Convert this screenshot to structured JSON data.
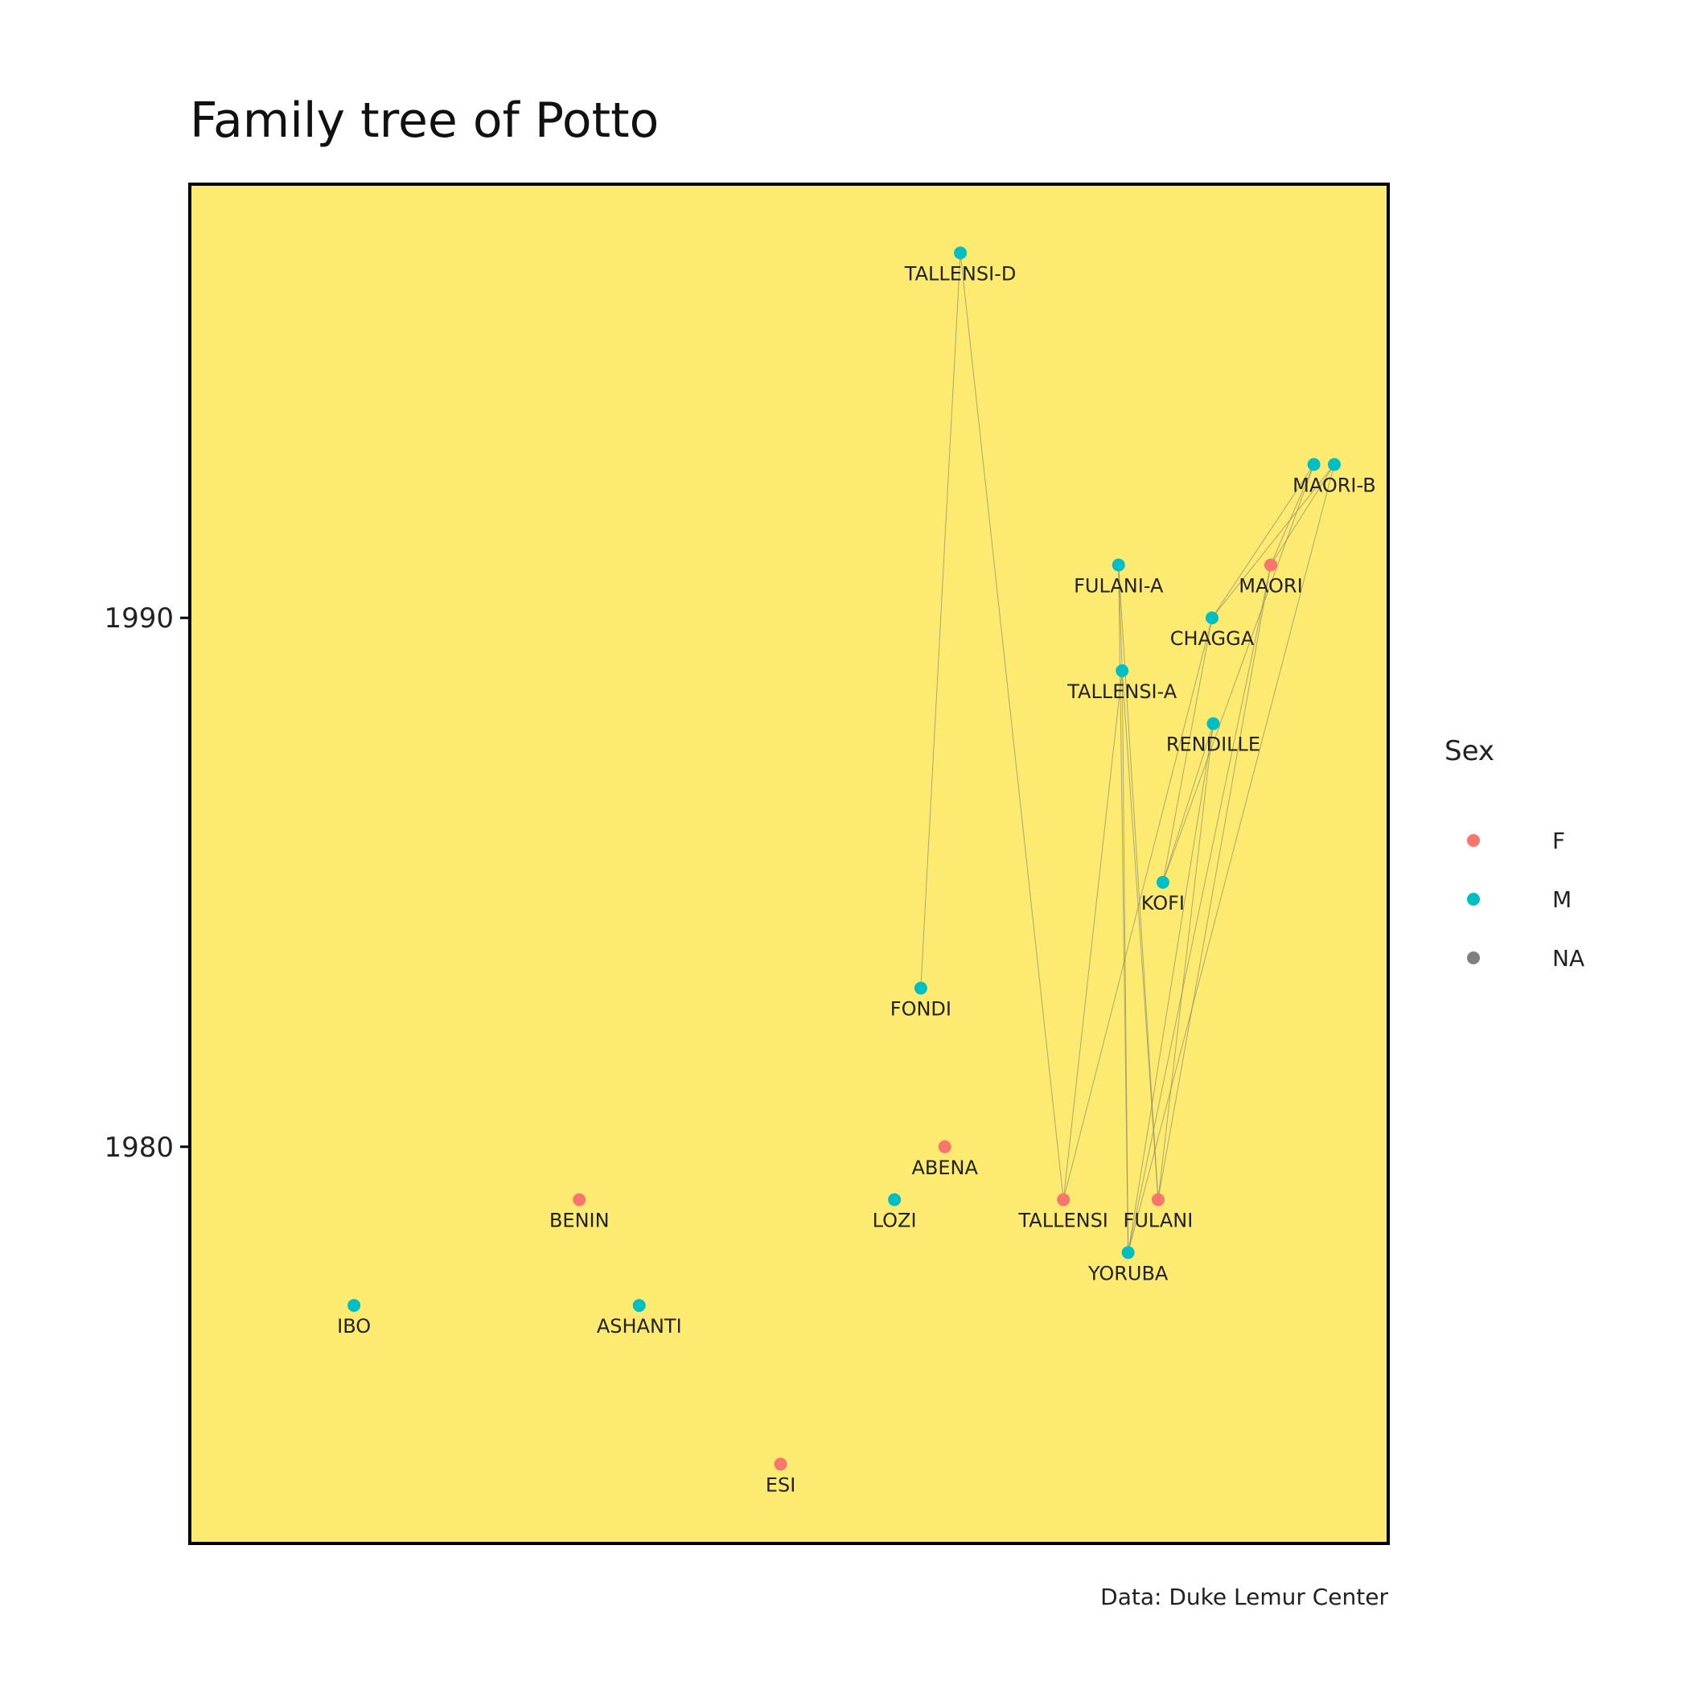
{
  "chart_data": {
    "type": "scatter",
    "title": "Family tree of Potto",
    "caption": "Data: Duke Lemur Center",
    "xlabel": "",
    "ylabel": "",
    "ylim": [
      1972.5,
      1998.2
    ],
    "y_ticks": [
      1980,
      1990
    ],
    "y_tick_labels": [
      "1980",
      "1990"
    ],
    "grid": false,
    "background": "#FDEB71",
    "sex_colors": {
      "F": "#F8766D",
      "M": "#00BFC4",
      "NA": "#7F7F7F"
    },
    "legend": {
      "title": "Sex",
      "position": "right",
      "items": [
        {
          "label": "F",
          "color": "#F8766D"
        },
        {
          "label": "M",
          "color": "#00BFC4"
        },
        {
          "label": "NA",
          "color": "#7F7F7F"
        }
      ]
    },
    "points": [
      {
        "name": "TALLENSI-D",
        "sex": "M",
        "x": 0.643,
        "y": 1996.9,
        "label": "TALLENSI-D"
      },
      {
        "name": "MAORI-B-1",
        "sex": "M",
        "x": 0.938,
        "y": 1992.9,
        "label": ""
      },
      {
        "name": "MAORI-B",
        "sex": "M",
        "x": 0.955,
        "y": 1992.9,
        "label": "MAORI-B"
      },
      {
        "name": "FULANI-A",
        "sex": "M",
        "x": 0.775,
        "y": 1991.0,
        "label": "FULANI-A"
      },
      {
        "name": "MAORI",
        "sex": "F",
        "x": 0.902,
        "y": 1991.0,
        "label": "MAORI"
      },
      {
        "name": "CHAGGA",
        "sex": "M",
        "x": 0.853,
        "y": 1990.0,
        "label": "CHAGGA"
      },
      {
        "name": "TALLENSI-A",
        "sex": "M",
        "x": 0.778,
        "y": 1989.0,
        "label": "TALLENSI-A"
      },
      {
        "name": "RENDILLE",
        "sex": "M",
        "x": 0.854,
        "y": 1988.0,
        "label": "RENDILLE"
      },
      {
        "name": "KOFI",
        "sex": "M",
        "x": 0.812,
        "y": 1985.0,
        "label": "KOFI"
      },
      {
        "name": "FONDI",
        "sex": "M",
        "x": 0.61,
        "y": 1983.0,
        "label": "FONDI"
      },
      {
        "name": "ABENA",
        "sex": "F",
        "x": 0.63,
        "y": 1980.0,
        "label": "ABENA"
      },
      {
        "name": "BENIN",
        "sex": "F",
        "x": 0.325,
        "y": 1979.0,
        "label": "BENIN"
      },
      {
        "name": "LOZI",
        "sex": "M",
        "x": 0.588,
        "y": 1979.0,
        "label": "LOZI"
      },
      {
        "name": "TALLENSI",
        "sex": "F",
        "x": 0.729,
        "y": 1979.0,
        "label": "TALLENSI"
      },
      {
        "name": "FULANI",
        "sex": "F",
        "x": 0.808,
        "y": 1979.0,
        "label": "FULANI"
      },
      {
        "name": "YORUBA",
        "sex": "M",
        "x": 0.783,
        "y": 1978.0,
        "label": "YORUBA"
      },
      {
        "name": "IBO",
        "sex": "M",
        "x": 0.137,
        "y": 1977.0,
        "label": "IBO"
      },
      {
        "name": "ASHANTI",
        "sex": "M",
        "x": 0.375,
        "y": 1977.0,
        "label": "ASHANTI"
      },
      {
        "name": "ESI",
        "sex": "F",
        "x": 0.493,
        "y": 1974.0,
        "label": "ESI"
      }
    ],
    "links": [
      [
        "FONDI",
        "TALLENSI-D"
      ],
      [
        "TALLENSI-D",
        "TALLENSI"
      ],
      [
        "TALLENSI",
        "TALLENSI-A"
      ],
      [
        "TALLENSI",
        "CHAGGA"
      ],
      [
        "TALLENSI-A",
        "FULANI-A"
      ],
      [
        "FULANI-A",
        "FULANI"
      ],
      [
        "TALLENSI-A",
        "FULANI"
      ],
      [
        "TALLENSI-A",
        "YORUBA"
      ],
      [
        "FULANI-A",
        "YORUBA"
      ],
      [
        "KOFI",
        "CHAGGA"
      ],
      [
        "KOFI",
        "RENDILLE"
      ],
      [
        "KOFI",
        "MAORI-B-1"
      ],
      [
        "CHAGGA",
        "MAORI-B"
      ],
      [
        "CHAGGA",
        "MAORI-B-1"
      ],
      [
        "MAORI",
        "MAORI-B"
      ],
      [
        "MAORI",
        "MAORI-B-1"
      ],
      [
        "FULANI",
        "RENDILLE"
      ],
      [
        "FULANI",
        "MAORI"
      ],
      [
        "YORUBA",
        "RENDILLE"
      ],
      [
        "YORUBA",
        "MAORI"
      ],
      [
        "YORUBA",
        "MAORI-B"
      ]
    ]
  }
}
